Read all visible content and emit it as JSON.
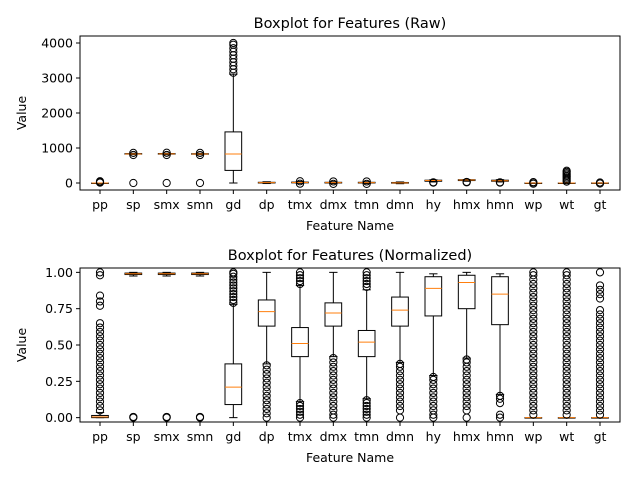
{
  "chart_data": [
    {
      "type": "boxplot",
      "title": "Boxplot for Features (Raw)",
      "xlabel": "Feature Name",
      "ylabel": "Value",
      "ylim": [
        -200,
        4200
      ],
      "yticks": [
        0,
        1000,
        2000,
        3000,
        4000
      ],
      "categories": [
        "pp",
        "sp",
        "smx",
        "smn",
        "gd",
        "dp",
        "tmx",
        "dmx",
        "tmn",
        "dmn",
        "hy",
        "hmx",
        "hmn",
        "wp",
        "wt",
        "gt"
      ],
      "boxes": [
        {
          "min": 0,
          "q1": 0,
          "median": 0,
          "q3": 0,
          "max": 0,
          "outliers": [
            10,
            20,
            35,
            50
          ]
        },
        {
          "min": 810,
          "q1": 825,
          "median": 830,
          "q3": 840,
          "max": 850,
          "outliers": [
            0,
            800,
            860
          ]
        },
        {
          "min": 810,
          "q1": 825,
          "median": 832,
          "q3": 842,
          "max": 852,
          "outliers": [
            0,
            800,
            865
          ]
        },
        {
          "min": 808,
          "q1": 822,
          "median": 830,
          "q3": 838,
          "max": 848,
          "outliers": [
            0,
            798,
            860
          ]
        },
        {
          "min": 0,
          "q1": 360,
          "median": 830,
          "q3": 1460,
          "max": 3110,
          "outliers": [
            3150,
            3250,
            3350,
            3450,
            3550,
            3650,
            3750,
            3850,
            3950,
            4000
          ]
        },
        {
          "min": -15,
          "q1": 0,
          "median": 10,
          "q3": 20,
          "max": 35,
          "outliers": []
        },
        {
          "min": -10,
          "q1": 5,
          "median": 15,
          "q3": 25,
          "max": 40,
          "outliers": [
            -20,
            50
          ]
        },
        {
          "min": -15,
          "q1": 0,
          "median": 10,
          "q3": 20,
          "max": 35,
          "outliers": [
            -25,
            45
          ]
        },
        {
          "min": -15,
          "q1": 0,
          "median": 10,
          "q3": 20,
          "max": 35,
          "outliers": [
            -25,
            45
          ]
        },
        {
          "min": -20,
          "q1": -5,
          "median": 5,
          "q3": 15,
          "max": 30,
          "outliers": []
        },
        {
          "min": 30,
          "q1": 50,
          "median": 70,
          "q3": 80,
          "max": 90,
          "outliers": [
            10,
            20
          ]
        },
        {
          "min": 50,
          "q1": 70,
          "median": 85,
          "q3": 95,
          "max": 100,
          "outliers": [
            20,
            30
          ]
        },
        {
          "min": 30,
          "q1": 50,
          "median": 65,
          "q3": 80,
          "max": 95,
          "outliers": [
            10,
            20
          ]
        },
        {
          "min": -10,
          "q1": -5,
          "median": 0,
          "q3": 0,
          "max": 5,
          "outliers": [
            -20,
            15,
            25
          ]
        },
        {
          "min": 0,
          "q1": 0,
          "median": 0,
          "q3": 0,
          "max": 0,
          "outliers": [
            40,
            80,
            120,
            160,
            200,
            240,
            280,
            320,
            350
          ]
        },
        {
          "min": -5,
          "q1": -2,
          "median": 0,
          "q3": 2,
          "max": 5,
          "outliers": [
            -15,
            15
          ]
        }
      ]
    },
    {
      "type": "boxplot",
      "title": "Boxplot for Features (Normalized)",
      "xlabel": "Feature Name",
      "ylabel": "Value",
      "ylim": [
        -0.03,
        1.03
      ],
      "yticks": [
        "0.00",
        "0.25",
        "0.50",
        "0.75",
        "1.00"
      ],
      "categories": [
        "pp",
        "sp",
        "smx",
        "smn",
        "gd",
        "dp",
        "tmx",
        "dmx",
        "tmn",
        "dmn",
        "hy",
        "hmx",
        "hmn",
        "wp",
        "wt",
        "gt"
      ],
      "boxes": [
        {
          "min": 0,
          "q1": 0.0,
          "median": 0.005,
          "q3": 0.015,
          "max": 0.035,
          "outliers": [
            0.05,
            0.08,
            0.11,
            0.14,
            0.17,
            0.2,
            0.23,
            0.26,
            0.29,
            0.32,
            0.35,
            0.38,
            0.41,
            0.44,
            0.47,
            0.5,
            0.53,
            0.56,
            0.59,
            0.62,
            0.65,
            0.77,
            0.8,
            0.84,
            0.98,
            1.0
          ]
        },
        {
          "min": 0.975,
          "q1": 0.985,
          "median": 0.99,
          "q3": 0.995,
          "max": 1.0,
          "outliers": [
            0.0,
            0.005
          ]
        },
        {
          "min": 0.975,
          "q1": 0.985,
          "median": 0.99,
          "q3": 0.995,
          "max": 1.0,
          "outliers": [
            0.0,
            0.005
          ]
        },
        {
          "min": 0.975,
          "q1": 0.985,
          "median": 0.99,
          "q3": 0.995,
          "max": 1.0,
          "outliers": [
            0.0,
            0.005
          ]
        },
        {
          "min": 0.0,
          "q1": 0.09,
          "median": 0.21,
          "q3": 0.37,
          "max": 0.78,
          "outliers": [
            0.79,
            0.81,
            0.83,
            0.85,
            0.87,
            0.89,
            0.91,
            0.93,
            0.95,
            0.97,
            0.99,
            1.0
          ]
        },
        {
          "min": 0.37,
          "q1": 0.63,
          "median": 0.73,
          "q3": 0.81,
          "max": 1.0,
          "outliers": [
            0.0,
            0.03,
            0.06,
            0.09,
            0.12,
            0.15,
            0.18,
            0.21,
            0.24,
            0.27,
            0.3,
            0.33,
            0.36
          ]
        },
        {
          "min": 0.11,
          "q1": 0.42,
          "median": 0.51,
          "q3": 0.62,
          "max": 0.91,
          "outliers": [
            0.0,
            0.02,
            0.04,
            0.06,
            0.08,
            0.1,
            0.92,
            0.94,
            0.96,
            0.98,
            1.0
          ]
        },
        {
          "min": 0.42,
          "q1": 0.63,
          "median": 0.72,
          "q3": 0.79,
          "max": 1.0,
          "outliers": [
            0.0,
            0.02,
            0.05,
            0.08,
            0.11,
            0.14,
            0.17,
            0.2,
            0.23,
            0.26,
            0.29,
            0.32,
            0.35,
            0.38,
            0.41
          ]
        },
        {
          "min": 0.13,
          "q1": 0.42,
          "median": 0.52,
          "q3": 0.6,
          "max": 0.88,
          "outliers": [
            0.0,
            0.02,
            0.04,
            0.06,
            0.08,
            0.1,
            0.12,
            0.9,
            0.92,
            0.94,
            0.96,
            0.98,
            1.0
          ]
        },
        {
          "min": 0.38,
          "q1": 0.63,
          "median": 0.74,
          "q3": 0.83,
          "max": 1.0,
          "outliers": [
            0.0,
            0.05,
            0.08,
            0.11,
            0.14,
            0.17,
            0.2,
            0.23,
            0.26,
            0.29,
            0.32,
            0.35,
            0.37
          ]
        },
        {
          "min": 0.29,
          "q1": 0.7,
          "median": 0.89,
          "q3": 0.97,
          "max": 0.99,
          "outliers": [
            0.0,
            0.02,
            0.05,
            0.08,
            0.11,
            0.14,
            0.17,
            0.2,
            0.23,
            0.26,
            0.28
          ]
        },
        {
          "min": 0.41,
          "q1": 0.75,
          "median": 0.93,
          "q3": 0.98,
          "max": 1.0,
          "outliers": [
            0.0,
            0.05,
            0.08,
            0.11,
            0.14,
            0.17,
            0.2,
            0.23,
            0.26,
            0.29,
            0.32,
            0.35,
            0.38,
            0.4
          ]
        },
        {
          "min": 0.16,
          "q1": 0.64,
          "median": 0.85,
          "q3": 0.97,
          "max": 0.99,
          "outliers": [
            0.0,
            0.02,
            0.1,
            0.13,
            0.15
          ]
        },
        {
          "min": 0.0,
          "q1": 0.0,
          "median": 0.0,
          "q3": 0.0,
          "max": 0.0,
          "outliers": [
            0.02,
            0.05,
            0.08,
            0.11,
            0.14,
            0.17,
            0.2,
            0.23,
            0.26,
            0.29,
            0.32,
            0.35,
            0.38,
            0.41,
            0.44,
            0.47,
            0.5,
            0.53,
            0.56,
            0.59,
            0.62,
            0.65,
            0.68,
            0.71,
            0.74,
            0.77,
            0.8,
            0.83,
            0.86,
            0.89,
            0.92,
            0.95,
            0.98,
            1.0
          ]
        },
        {
          "min": 0.0,
          "q1": 0.0,
          "median": 0.0,
          "q3": 0.0,
          "max": 0.0,
          "outliers": [
            0.02,
            0.05,
            0.08,
            0.11,
            0.14,
            0.17,
            0.2,
            0.23,
            0.26,
            0.29,
            0.32,
            0.35,
            0.38,
            0.41,
            0.44,
            0.47,
            0.5,
            0.53,
            0.56,
            0.59,
            0.62,
            0.65,
            0.68,
            0.71,
            0.74,
            0.77,
            0.8,
            0.83,
            0.86,
            0.89,
            0.92,
            0.95,
            0.98,
            1.0
          ]
        },
        {
          "min": 0.0,
          "q1": 0.0,
          "median": 0.0,
          "q3": 0.0,
          "max": 0.0,
          "outliers": [
            0.02,
            0.05,
            0.08,
            0.11,
            0.14,
            0.17,
            0.2,
            0.23,
            0.26,
            0.29,
            0.32,
            0.35,
            0.38,
            0.41,
            0.44,
            0.47,
            0.5,
            0.53,
            0.56,
            0.59,
            0.62,
            0.65,
            0.68,
            0.71,
            0.74,
            0.82,
            0.85,
            0.88,
            0.91,
            1.0
          ]
        }
      ]
    }
  ],
  "colors": {
    "median": "#ff7f0e",
    "box": "#000000",
    "background": "#ffffff"
  }
}
